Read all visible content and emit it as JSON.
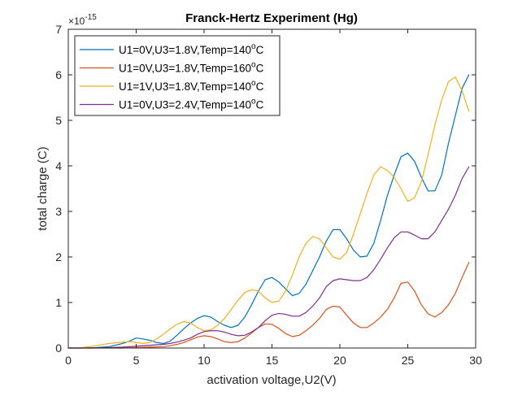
{
  "chart_data": {
    "type": "line",
    "title": "Franck-Hertz Experiment (Hg)",
    "xlabel": "activation voltage,U2(V)",
    "ylabel": "total charge (C)",
    "y_exponent_label": "×10",
    "y_exponent_power": "-15",
    "xlim": [
      0,
      30
    ],
    "ylim": [
      0,
      7
    ],
    "xticks": [
      0,
      5,
      10,
      15,
      20,
      25,
      30
    ],
    "yticks": [
      0,
      1,
      2,
      3,
      4,
      5,
      6,
      7
    ],
    "grid": false,
    "legend_position": "top-left",
    "series": [
      {
        "name": "U1=0V,U3=1.8V,Temp=140",
        "name_superscript": "o",
        "name_suffix": "C",
        "color": "#0072BD",
        "x": [
          0,
          1,
          2,
          3,
          4,
          4.5,
          5,
          5.5,
          6,
          6.5,
          7,
          7.5,
          8,
          8.5,
          9,
          9.5,
          10,
          10.5,
          11,
          11.5,
          12,
          12.5,
          13,
          13.5,
          14,
          14.5,
          15,
          15.5,
          16,
          16.5,
          17,
          17.5,
          18,
          18.5,
          19,
          19.5,
          20,
          20.5,
          21,
          21.5,
          22,
          22.5,
          23,
          23.5,
          24,
          24.5,
          25,
          25.5,
          26,
          26.5,
          27,
          27.5,
          28,
          28.5,
          29,
          29.5
        ],
        "y": [
          0,
          0,
          0.01,
          0.03,
          0.1,
          0.15,
          0.22,
          0.2,
          0.17,
          0.12,
          0.1,
          0.15,
          0.28,
          0.42,
          0.55,
          0.65,
          0.71,
          0.68,
          0.58,
          0.5,
          0.45,
          0.5,
          0.68,
          0.95,
          1.25,
          1.5,
          1.55,
          1.45,
          1.3,
          1.15,
          1.2,
          1.4,
          1.7,
          2.0,
          2.35,
          2.6,
          2.6,
          2.4,
          2.15,
          2.0,
          2.02,
          2.3,
          2.8,
          3.35,
          3.8,
          4.2,
          4.28,
          4.1,
          3.75,
          3.45,
          3.45,
          3.8,
          4.5,
          5.1,
          5.7,
          6.0
        ]
      },
      {
        "name": "U1=0V,U3=1.8V,Temp=160",
        "name_superscript": "o",
        "name_suffix": "C",
        "color": "#D95319",
        "x": [
          0,
          2,
          4,
          5,
          6,
          7,
          7.5,
          8,
          8.5,
          9,
          9.5,
          10,
          10.5,
          11,
          11.5,
          12,
          12.5,
          13,
          13.5,
          14,
          14.5,
          15,
          15.5,
          16,
          16.5,
          17,
          17.5,
          18,
          18.5,
          19,
          19.5,
          20,
          20.5,
          21,
          21.5,
          22,
          22.5,
          23,
          23.5,
          24,
          24.5,
          25,
          25.5,
          26,
          26.5,
          27,
          27.5,
          28,
          28.5,
          29,
          29.5
        ],
        "y": [
          0,
          0,
          0,
          0.01,
          0.02,
          0.03,
          0.05,
          0.08,
          0.12,
          0.18,
          0.24,
          0.27,
          0.25,
          0.2,
          0.14,
          0.12,
          0.14,
          0.22,
          0.33,
          0.45,
          0.53,
          0.52,
          0.43,
          0.32,
          0.25,
          0.28,
          0.38,
          0.5,
          0.65,
          0.85,
          0.92,
          0.9,
          0.72,
          0.55,
          0.45,
          0.45,
          0.55,
          0.68,
          0.85,
          1.1,
          1.42,
          1.45,
          1.25,
          0.95,
          0.75,
          0.68,
          0.78,
          0.95,
          1.2,
          1.55,
          1.88
        ]
      },
      {
        "name": "U1=1V,U3=1.8V,Temp=140",
        "name_superscript": "o",
        "name_suffix": "C",
        "color": "#EDB120",
        "x": [
          0,
          1,
          2,
          3,
          4,
          4.5,
          5,
          5.5,
          6,
          6.5,
          7,
          7.5,
          8,
          8.5,
          9,
          9.5,
          10,
          10.5,
          11,
          11.5,
          12,
          12.5,
          13,
          13.5,
          14,
          14.5,
          15,
          15.5,
          16,
          16.5,
          17,
          17.5,
          18,
          18.5,
          19,
          19.5,
          20,
          20.5,
          21,
          21.5,
          22,
          22.5,
          23,
          23.5,
          24,
          24.5,
          25,
          25.5,
          26,
          26.5,
          27,
          27.5,
          28,
          28.5,
          29,
          29.5
        ],
        "y": [
          0,
          0.01,
          0.05,
          0.1,
          0.13,
          0.14,
          0.12,
          0.1,
          0.12,
          0.2,
          0.3,
          0.42,
          0.52,
          0.58,
          0.55,
          0.45,
          0.38,
          0.4,
          0.5,
          0.65,
          0.85,
          1.05,
          1.22,
          1.28,
          1.25,
          1.1,
          1.0,
          1.03,
          1.25,
          1.6,
          2.0,
          2.3,
          2.45,
          2.4,
          2.2,
          2.0,
          1.95,
          2.1,
          2.5,
          2.95,
          3.4,
          3.8,
          3.98,
          3.9,
          3.75,
          3.5,
          3.22,
          3.3,
          3.65,
          4.25,
          4.9,
          5.45,
          5.85,
          5.95,
          5.65,
          5.2
        ]
      },
      {
        "name": "U1=0V,U3=2.4V,Temp=140",
        "name_superscript": "o",
        "name_suffix": "C",
        "color": "#7E2F8E",
        "x": [
          0,
          2,
          4,
          5,
          6,
          7,
          7.5,
          8,
          8.5,
          9,
          9.5,
          10,
          10.5,
          11,
          11.5,
          12,
          12.5,
          13,
          13.5,
          14,
          14.5,
          15,
          15.5,
          16,
          16.5,
          17,
          17.5,
          18,
          18.5,
          19,
          19.5,
          20,
          20.5,
          21,
          21.5,
          22,
          22.5,
          23,
          23.5,
          24,
          24.5,
          25,
          25.5,
          26,
          26.5,
          27,
          27.5,
          28,
          28.5,
          29,
          29.5
        ],
        "y": [
          0,
          0,
          0.02,
          0.04,
          0.06,
          0.08,
          0.1,
          0.13,
          0.17,
          0.22,
          0.3,
          0.36,
          0.38,
          0.38,
          0.35,
          0.3,
          0.27,
          0.28,
          0.35,
          0.45,
          0.6,
          0.72,
          0.76,
          0.74,
          0.7,
          0.7,
          0.78,
          0.92,
          1.1,
          1.35,
          1.48,
          1.52,
          1.5,
          1.48,
          1.48,
          1.55,
          1.72,
          1.95,
          2.2,
          2.42,
          2.55,
          2.55,
          2.48,
          2.4,
          2.4,
          2.55,
          2.8,
          3.05,
          3.35,
          3.72,
          3.98
        ]
      }
    ]
  }
}
